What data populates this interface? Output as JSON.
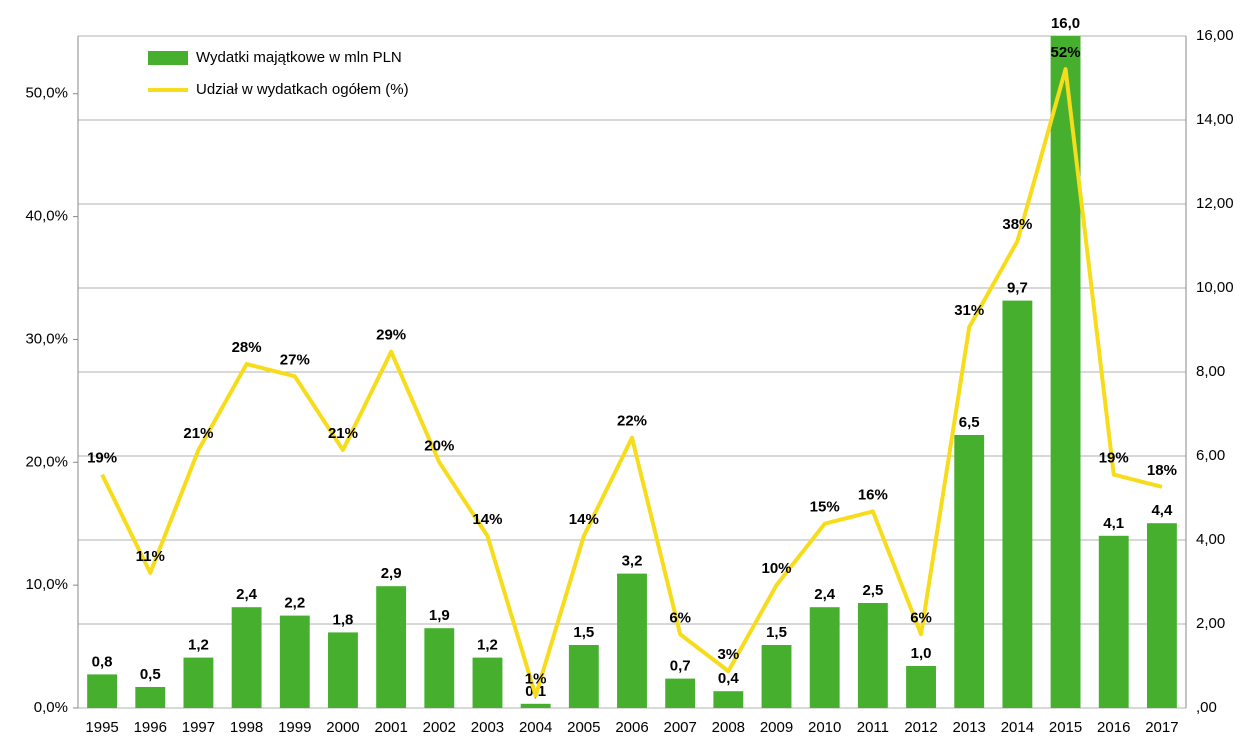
{
  "chart_data": {
    "type": "combo",
    "categories": [
      "1995",
      "1996",
      "1997",
      "1998",
      "1999",
      "2000",
      "2001",
      "2002",
      "2003",
      "2004",
      "2005",
      "2006",
      "2007",
      "2008",
      "2009",
      "2010",
      "2011",
      "2012",
      "2013",
      "2014",
      "2015",
      "2016",
      "2017"
    ],
    "series": [
      {
        "name": "Wydatki majątkowe w mln PLN",
        "type": "bar",
        "axis": "y2",
        "color": "#46b02e",
        "values": [
          0.8,
          0.5,
          1.2,
          2.4,
          2.2,
          1.8,
          2.9,
          1.9,
          1.2,
          0.1,
          1.5,
          3.2,
          0.7,
          0.4,
          1.5,
          2.4,
          2.5,
          1.0,
          6.5,
          9.7,
          16.0,
          4.1,
          4.4
        ],
        "value_labels": [
          "0,8",
          "0,5",
          "1,2",
          "2,4",
          "2,2",
          "1,8",
          "2,9",
          "1,9",
          "1,2",
          "0,1",
          "1,5",
          "3,2",
          "0,7",
          "0,4",
          "1,5",
          "2,4",
          "2,5",
          "1,0",
          "6,5",
          "9,7",
          "16,0",
          "4,1",
          "4,4"
        ]
      },
      {
        "name": "Udział w wydatkach ogółem (%)",
        "type": "line",
        "axis": "y",
        "color": "#f7dc1b",
        "values": [
          19,
          11,
          21,
          28,
          27,
          21,
          29,
          20,
          14,
          1,
          14,
          22,
          6,
          3,
          10,
          15,
          16,
          6,
          31,
          38,
          52,
          19,
          18
        ],
        "value_labels": [
          "19%",
          "11%",
          "21%",
          "28%",
          "27%",
          "21%",
          "29%",
          "20%",
          "14%",
          "1%",
          "14%",
          "22%",
          "6%",
          "3%",
          "10%",
          "15%",
          "16%",
          "6%",
          "31%",
          "38%",
          "52%",
          "19%",
          "18%"
        ]
      }
    ],
    "ylim": [
      0,
      54.7
    ],
    "yticks": [
      {
        "value": 0,
        "label": "0,0%"
      },
      {
        "value": 10,
        "label": "10,0%"
      },
      {
        "value": 20,
        "label": "20,0%"
      },
      {
        "value": 30,
        "label": "30,0%"
      },
      {
        "value": 40,
        "label": "40,0%"
      },
      {
        "value": 50,
        "label": "50,0%"
      }
    ],
    "y2lim": [
      0,
      16
    ],
    "y2ticks": [
      {
        "value": 0,
        "label": ",00"
      },
      {
        "value": 2,
        "label": "2,00"
      },
      {
        "value": 4,
        "label": "4,00"
      },
      {
        "value": 6,
        "label": "6,00"
      },
      {
        "value": 8,
        "label": "8,00"
      },
      {
        "value": 10,
        "label": "10,00"
      },
      {
        "value": 12,
        "label": "12,00"
      },
      {
        "value": 14,
        "label": "14,00"
      },
      {
        "value": 16,
        "label": "16,00"
      }
    ],
    "grid": true,
    "legend": "upper left"
  }
}
